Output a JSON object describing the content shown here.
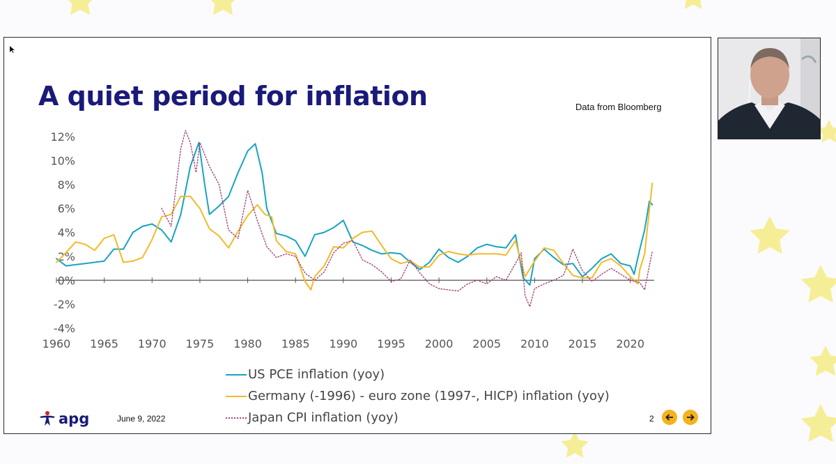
{
  "slide": {
    "title": "A quiet period for inflation",
    "source_note": "Data from Bloomberg",
    "date": "June 9, 2022",
    "page_number": "2",
    "logo_text": "apg",
    "nav": {
      "prev_icon": "arrow-left-icon",
      "next_icon": "arrow-right-icon"
    }
  },
  "colors": {
    "us": "#17a3c0",
    "de": "#f2b92b",
    "jp": "#a2427a",
    "title": "#1a1a7a",
    "nav": "#f5b21c",
    "stars": "#f6ee96"
  },
  "chart_data": {
    "type": "line",
    "title": "",
    "xlabel": "",
    "ylabel": "",
    "xlim": [
      1960,
      2022.5
    ],
    "ylim": [
      -4,
      12
    ],
    "x_ticks": [
      1960,
      1965,
      1970,
      1975,
      1980,
      1985,
      1990,
      1995,
      2000,
      2005,
      2010,
      2015,
      2020
    ],
    "y_ticks": [
      "12%",
      "10%",
      "8%",
      "6%",
      "4%",
      "2%",
      "0%",
      "-2%",
      "-4%"
    ],
    "grid": false,
    "legend_position": "bottom",
    "series": [
      {
        "name": "US PCE inflation (yoy)",
        "style": "solid",
        "x": [
          1960,
          1961,
          1962,
          1963,
          1964,
          1965,
          1966,
          1967,
          1968,
          1969,
          1970,
          1971,
          1972,
          1973,
          1974,
          1974.9,
          1975.5,
          1976,
          1977,
          1978,
          1979,
          1980,
          1980.8,
          1981.5,
          1982,
          1983,
          1984,
          1985,
          1986,
          1987,
          1988,
          1989,
          1990,
          1991,
          1992,
          1993,
          1994,
          1995,
          1996,
          1997,
          1998,
          1999,
          2000,
          2001,
          2002,
          2003,
          2004,
          2005,
          2006,
          2007,
          2008,
          2008.8,
          2009.5,
          2010,
          2011,
          2012,
          2013,
          2014,
          2015,
          2016,
          2017,
          2018,
          2019,
          2020,
          2020.4,
          2021,
          2021.5,
          2022,
          2022.3
        ],
        "values": [
          1.8,
          1.2,
          1.3,
          1.4,
          1.5,
          1.6,
          2.6,
          2.6,
          4.0,
          4.5,
          4.7,
          4.2,
          3.2,
          5.5,
          9.5,
          11.5,
          8.0,
          5.5,
          6.2,
          7.0,
          9.0,
          10.8,
          11.4,
          9.0,
          6.0,
          3.9,
          3.7,
          3.3,
          2.0,
          3.8,
          4.0,
          4.4,
          5.0,
          3.2,
          2.9,
          2.5,
          2.2,
          2.3,
          2.2,
          1.5,
          0.9,
          1.5,
          2.6,
          1.9,
          1.5,
          2.0,
          2.7,
          3.0,
          2.8,
          2.7,
          3.8,
          0.2,
          -0.4,
          1.8,
          2.6,
          1.9,
          1.3,
          1.4,
          0.3,
          1.0,
          1.8,
          2.2,
          1.4,
          1.2,
          0.5,
          2.6,
          4.2,
          6.6,
          6.3
        ]
      },
      {
        "name": "Germany (-1996) - euro zone (1997-, HICP) inflation (yoy)",
        "style": "solid",
        "x": [
          1960,
          1961,
          1962,
          1963,
          1964,
          1965,
          1966,
          1967,
          1968,
          1969,
          1970,
          1971,
          1972,
          1973,
          1974,
          1975,
          1976,
          1977,
          1978,
          1979,
          1980,
          1981,
          1981.8,
          1982.5,
          1983,
          1984,
          1985,
          1986,
          1986.6,
          1987,
          1988,
          1989,
          1990,
          1991,
          1992,
          1993,
          1994,
          1995,
          1996,
          1997,
          1998,
          1999,
          2000,
          2001,
          2002,
          2003,
          2004,
          2005,
          2006,
          2007,
          2008,
          2009,
          2010,
          2011,
          2012,
          2013,
          2014,
          2015,
          2016,
          2017,
          2018,
          2019,
          2020,
          2020.8,
          2021,
          2021.5,
          2022,
          2022.3
        ],
        "values": [
          1.5,
          2.3,
          3.2,
          3.0,
          2.5,
          3.5,
          3.8,
          1.5,
          1.6,
          1.9,
          3.4,
          5.3,
          5.5,
          7.0,
          7.0,
          6.0,
          4.3,
          3.7,
          2.7,
          4.1,
          5.4,
          6.3,
          5.5,
          5.3,
          3.3,
          2.4,
          2.2,
          -0.1,
          -0.8,
          0.3,
          1.2,
          2.8,
          2.7,
          3.5,
          4.0,
          4.1,
          2.9,
          1.8,
          1.4,
          1.6,
          1.1,
          1.1,
          2.1,
          2.4,
          2.2,
          2.1,
          2.2,
          2.2,
          2.2,
          2.1,
          3.3,
          0.3,
          1.6,
          2.7,
          2.5,
          1.4,
          0.4,
          0.2,
          0.2,
          1.5,
          1.8,
          1.2,
          0.3,
          -0.3,
          0.9,
          2.2,
          5.9,
          8.1
        ]
      },
      {
        "name": "Japan CPI inflation (yoy)",
        "style": "dotted",
        "x": [
          1971,
          1972,
          1973,
          1973.5,
          1974,
          1974.6,
          1975,
          1975.5,
          1976,
          1977,
          1978,
          1979,
          1980,
          1981,
          1982,
          1983,
          1984,
          1985,
          1986,
          1987,
          1988,
          1989,
          1990,
          1991,
          1992,
          1993,
          1994,
          1995,
          1996,
          1997,
          1998,
          1999,
          2000,
          2001,
          2002,
          2003,
          2004,
          2005,
          2006,
          2007,
          2008,
          2008.6,
          2009,
          2009.5,
          2010,
          2011,
          2012,
          2013,
          2013.5,
          2014,
          2015,
          2016,
          2017,
          2018,
          2019,
          2020,
          2021,
          2021.5,
          2022,
          2022.3
        ],
        "values": [
          6.0,
          4.5,
          11.0,
          12.5,
          11.5,
          9.0,
          11.5,
          10.5,
          9.5,
          8.0,
          4.2,
          3.5,
          7.5,
          5.0,
          2.8,
          1.9,
          2.2,
          2.0,
          0.6,
          0.0,
          0.7,
          2.3,
          3.1,
          3.3,
          1.7,
          1.3,
          0.7,
          -0.1,
          0.1,
          1.7,
          0.6,
          -0.3,
          -0.7,
          -0.8,
          -0.9,
          -0.3,
          0.0,
          -0.3,
          0.3,
          0.0,
          1.4,
          2.3,
          -1.3,
          -2.2,
          -0.7,
          -0.3,
          0.0,
          0.4,
          1.4,
          2.6,
          0.8,
          -0.1,
          0.5,
          1.0,
          0.5,
          0.0,
          -0.2,
          -0.8,
          1.2,
          2.4
        ]
      }
    ]
  }
}
